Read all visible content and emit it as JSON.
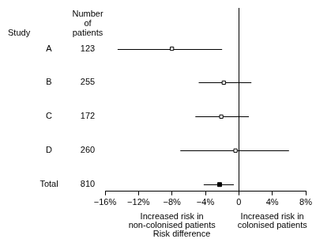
{
  "chart_data": {
    "type": "forest",
    "category_label": "Study",
    "patients_label": "Number of patients",
    "categories": [
      "A",
      "B",
      "C",
      "D",
      "Total"
    ],
    "patients": [
      123,
      255,
      172,
      260,
      810
    ],
    "series": [
      {
        "values": [
          -8,
          -1.8,
          -2.1,
          -0.4,
          null
        ],
        "ci_lower": [
          -14.5,
          -4.8,
          -5.2,
          -7,
          null
        ],
        "ci_upper": [
          -2,
          1.5,
          1.2,
          6,
          null
        ],
        "color": "#000000",
        "marker": "open_square"
      },
      {
        "values": [
          null,
          null,
          null,
          null,
          -2.3
        ],
        "ci_lower": [
          null,
          null,
          null,
          null,
          -4.2
        ],
        "ci_upper": [
          null,
          null,
          null,
          null,
          -0.6
        ],
        "color": "#000000",
        "marker": "square"
      }
    ],
    "xlabel": "Risk difference",
    "annotations": {
      "left": [
        "Increased risk in",
        "non-colonised patients"
      ],
      "right": [
        "Increased risk in",
        "colonised patients"
      ]
    },
    "reference_x": 0,
    "xlim": [
      -16,
      8
    ],
    "xticks": [
      {
        "value": -16,
        "label": "−16%"
      },
      {
        "value": -12,
        "label": "−12%"
      },
      {
        "value": -8,
        "label": "−8%"
      },
      {
        "value": -4,
        "label": "−4%"
      },
      {
        "value": 0,
        "label": "0"
      },
      {
        "value": 4,
        "label": "4%"
      },
      {
        "value": 8,
        "label": "8%"
      }
    ],
    "grid": false
  }
}
